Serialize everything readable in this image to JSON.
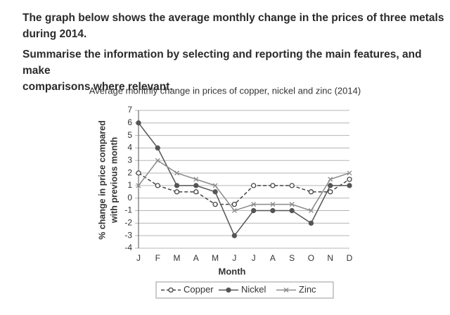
{
  "paragraphs": [
    [
      "The graph below shows the average monthly change in the prices of three metals",
      "during 2014."
    ],
    [
      "Summarise the information by selecting and reporting the main features, and make",
      "comparisons where relevant."
    ]
  ],
  "chart_data": {
    "type": "line",
    "title": "Average monthly change in prices of copper, nickel and zinc (2014)",
    "xlabel": "Month",
    "ylabel": [
      "% change in price compared",
      "with previous month"
    ],
    "categories": [
      "J",
      "F",
      "M",
      "A",
      "M",
      "J",
      "J",
      "A",
      "S",
      "O",
      "N",
      "D"
    ],
    "series": [
      {
        "name": "Copper",
        "color": "#444444",
        "line_style": "dashed",
        "marker": "open-circle",
        "values": [
          2,
          1,
          0.5,
          0.5,
          -0.5,
          -0.5,
          1,
          1,
          1,
          0.5,
          0.5,
          1.5
        ]
      },
      {
        "name": "Nickel",
        "color": "#555555",
        "line_style": "solid",
        "marker": "filled-circle",
        "values": [
          6,
          4,
          1,
          1,
          0.5,
          -3,
          -1,
          -1,
          -1,
          -2,
          1,
          1
        ]
      },
      {
        "name": "Zinc",
        "color": "#8a8a8a",
        "line_style": "solid",
        "marker": "cross",
        "values": [
          1,
          3,
          2,
          1.5,
          1,
          -1,
          -0.5,
          -0.5,
          -0.5,
          -1,
          1.5,
          2
        ]
      }
    ],
    "ylim": [
      -4,
      7
    ],
    "yticks": [
      -4,
      -3,
      -2,
      -1,
      0,
      1,
      2,
      3,
      4,
      5,
      6,
      7
    ],
    "grid": true,
    "legend": "bottom"
  }
}
